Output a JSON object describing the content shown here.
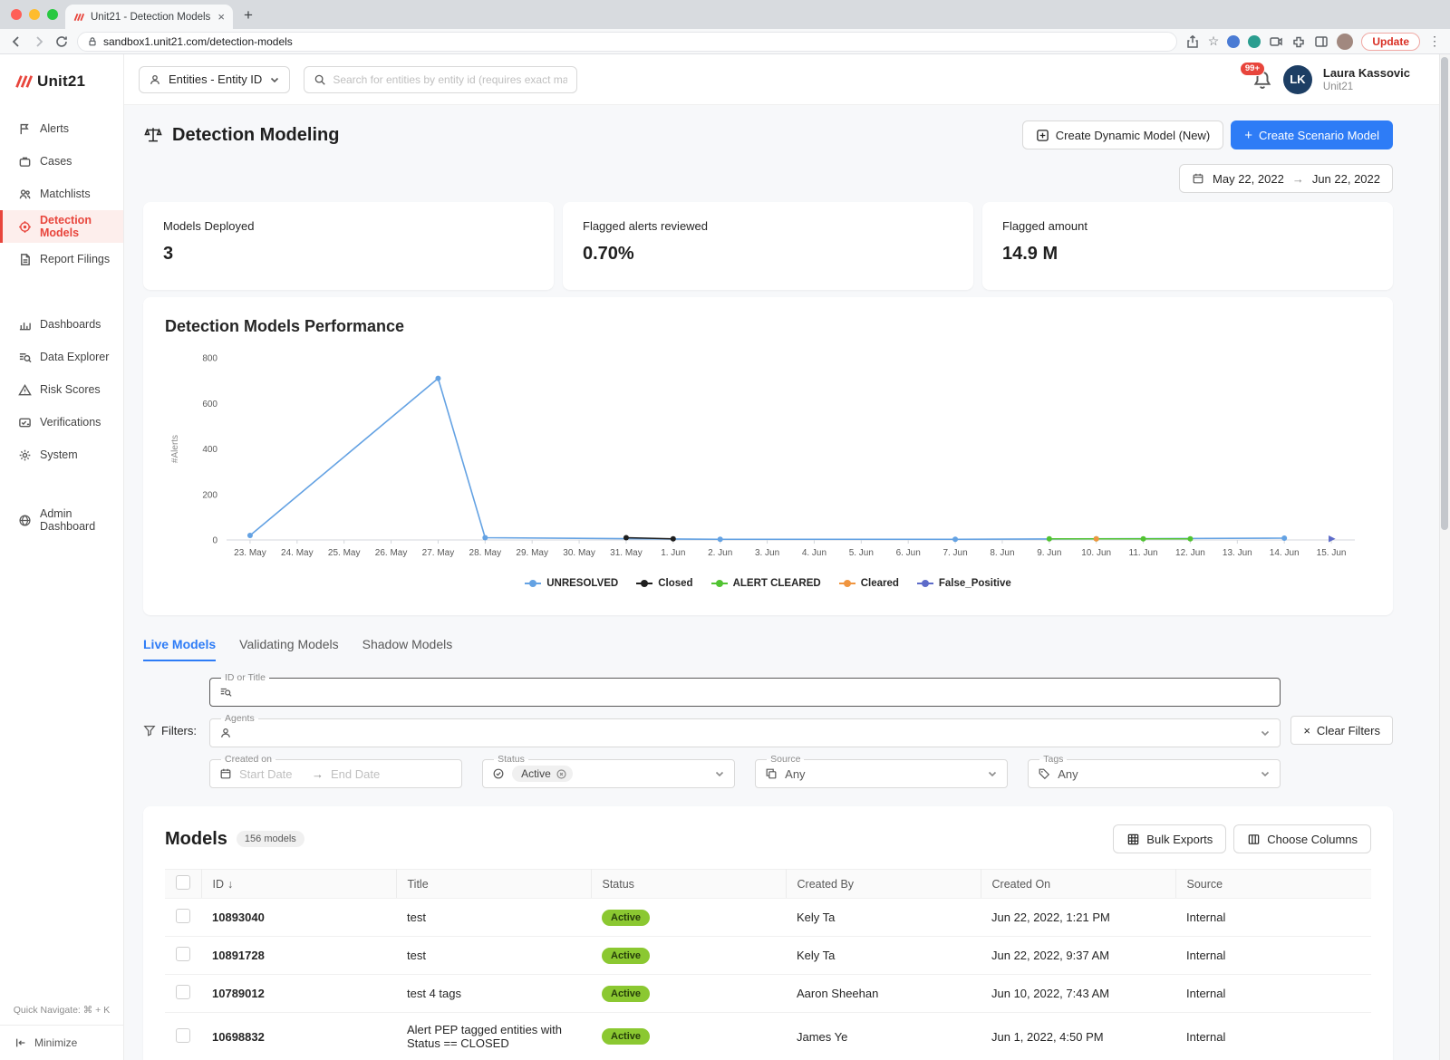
{
  "colors": {
    "accent_blue": "#2e7cf6",
    "brand_red": "#e8453c",
    "active_pill_bg": "#8bc831",
    "active_pill_text": "#263e0a"
  },
  "browser": {
    "tab_title": "Unit21 - Detection Models",
    "url": "sandbox1.unit21.com/detection-models",
    "update_label": "Update"
  },
  "topbar": {
    "entity_selector_label": "Entities - Entity ID",
    "search_placeholder": "Search for entities by entity id (requires exact match)",
    "notification_badge": "99+",
    "avatar_initials": "LK",
    "user_name": "Laura Kassovic",
    "user_org": "Unit21"
  },
  "sidebar": {
    "logo_text": "Unit21",
    "group1": [
      {
        "label": "Alerts"
      },
      {
        "label": "Cases"
      },
      {
        "label": "Matchlists"
      },
      {
        "label": "Detection Models"
      },
      {
        "label": "Report Filings"
      }
    ],
    "group2": [
      {
        "label": "Dashboards"
      },
      {
        "label": "Data Explorer"
      },
      {
        "label": "Risk Scores"
      },
      {
        "label": "Verifications"
      },
      {
        "label": "System"
      }
    ],
    "group3": [
      {
        "label": "Admin Dashboard"
      }
    ],
    "quick_navigate": "Quick Navigate: ⌘ + K",
    "minimize_label": "Minimize"
  },
  "page": {
    "title": "Detection Modeling",
    "create_dynamic_label": "Create Dynamic Model (New)",
    "create_scenario_label": "Create Scenario Model",
    "date_start": "May 22, 2022",
    "date_end": "Jun 22, 2022",
    "stats": [
      {
        "label": "Models Deployed",
        "value": "3"
      },
      {
        "label": "Flagged alerts reviewed",
        "value": "0.70%"
      },
      {
        "label": "Flagged amount",
        "value": "14.9 M"
      }
    ]
  },
  "chart_data": {
    "type": "line",
    "title": "Detection Models Performance",
    "ylabel": "#Alerts",
    "ylim": [
      0,
      800
    ],
    "yticks": [
      0,
      200,
      400,
      600,
      800
    ],
    "grid": false,
    "legend_position": "bottom",
    "x_labels": [
      "23. May",
      "24. May",
      "25. May",
      "26. May",
      "27. May",
      "28. May",
      "29. May",
      "30. May",
      "31. May",
      "1. Jun",
      "2. Jun",
      "3. Jun",
      "4. Jun",
      "5. Jun",
      "6. Jun",
      "7. Jun",
      "8. Jun",
      "9. Jun",
      "10. Jun",
      "11. Jun",
      "12. Jun",
      "13. Jun",
      "14. Jun",
      "15. Jun"
    ],
    "series": [
      {
        "name": "UNRESOLVED",
        "color": "#64a2e3",
        "symbol": "circle",
        "points": [
          [
            0,
            20
          ],
          [
            4,
            710
          ],
          [
            5,
            10
          ],
          [
            10,
            3
          ],
          [
            15,
            3
          ],
          [
            22,
            8
          ]
        ]
      },
      {
        "name": "Closed",
        "color": "#1f1f1f",
        "symbol": "circle",
        "points": [
          [
            8,
            10
          ],
          [
            9,
            5
          ]
        ]
      },
      {
        "name": "ALERT CLEARED",
        "color": "#51c332",
        "symbol": "circle",
        "points": [
          [
            17,
            5
          ],
          [
            18,
            5
          ],
          [
            19,
            5
          ],
          [
            20,
            5
          ]
        ]
      },
      {
        "name": "Cleared",
        "color": "#f0953f",
        "symbol": "circle",
        "points": [
          [
            18,
            5
          ]
        ]
      },
      {
        "name": "False_Positive",
        "color": "#5d6bc9",
        "symbol": "arrow",
        "points": [
          [
            23,
            5
          ]
        ]
      }
    ]
  },
  "tabs": [
    {
      "label": "Live Models"
    },
    {
      "label": "Validating Models"
    },
    {
      "label": "Shadow Models"
    }
  ],
  "filters": {
    "label": "Filters:",
    "id_or_title_label": "ID or Title",
    "agents_label": "Agents",
    "created_on_label": "Created on",
    "start_date_placeholder": "Start Date",
    "end_date_placeholder": "End Date",
    "status_label": "Status",
    "status_value": "Active",
    "source_label": "Source",
    "source_value": "Any",
    "tags_label": "Tags",
    "tags_value": "Any",
    "clear_label": "Clear Filters"
  },
  "models": {
    "title": "Models",
    "count_badge": "156 models",
    "bulk_exports_label": "Bulk Exports",
    "choose_columns_label": "Choose Columns",
    "columns": [
      "ID",
      "Title",
      "Status",
      "Created By",
      "Created On",
      "Source"
    ],
    "rows": [
      {
        "id": "10893040",
        "title": "test",
        "status": "Active",
        "created_by": "Kely Ta",
        "created_on": "Jun 22, 2022, 1:21 PM",
        "source": "Internal"
      },
      {
        "id": "10891728",
        "title": "test",
        "status": "Active",
        "created_by": "Kely Ta",
        "created_on": "Jun 22, 2022, 9:37 AM",
        "source": "Internal"
      },
      {
        "id": "10789012",
        "title": "test 4 tags",
        "status": "Active",
        "created_by": "Aaron Sheehan",
        "created_on": "Jun 10, 2022, 7:43 AM",
        "source": "Internal"
      },
      {
        "id": "10698832",
        "title": "Alert PEP tagged entities with Status == CLOSED",
        "status": "Active",
        "created_by": "James Ye",
        "created_on": "Jun 1, 2022, 4:50 PM",
        "source": "Internal"
      }
    ]
  },
  "icons": {
    "plus": "+",
    "close": "×",
    "clear_x": "×",
    "arrow_right": "→",
    "sort_desc": "↓",
    "dots_menu": "⋮",
    "star": "☆",
    "new_tab": "+"
  }
}
